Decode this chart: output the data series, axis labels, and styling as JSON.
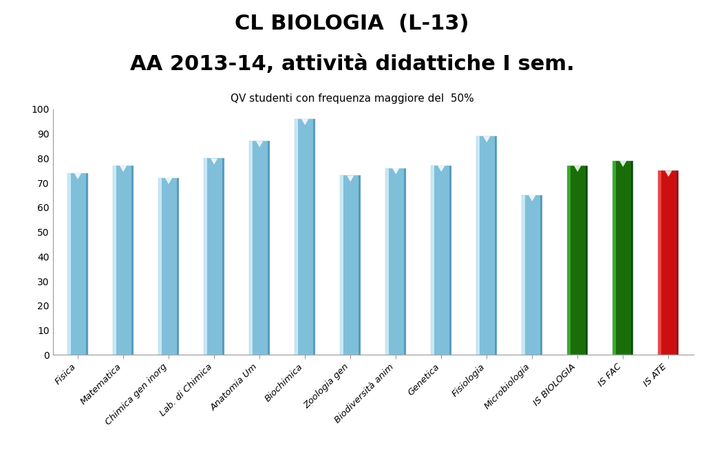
{
  "title_line1": "CL BIOLOGIA  (L-13)",
  "title_line2": "AA 2013-14, attività didattiche I sem.",
  "subtitle": "QV studenti con frequenza maggiore del  50%",
  "categories": [
    "Fisica",
    "Matematica",
    "Chimica gen inorg",
    "Lab. di Chimica",
    "Anatomia Um",
    "Biochimica",
    "Zoologia gen",
    "Biodiversità anim",
    "Genetica",
    "Fisiologia",
    "Microbiologia",
    "IS BIOLOGIA",
    "IS FAC",
    "IS ATE"
  ],
  "values": [
    74,
    77,
    72,
    80,
    87,
    96,
    73,
    76,
    77,
    89,
    65,
    77,
    79,
    75
  ],
  "bar_colors_main": [
    "#7fbfda",
    "#7fbfda",
    "#7fbfda",
    "#7fbfda",
    "#7fbfda",
    "#7fbfda",
    "#7fbfda",
    "#7fbfda",
    "#7fbfda",
    "#7fbfda",
    "#7fbfda",
    "#1a6e0a",
    "#1a6e0a",
    "#cc1010"
  ],
  "bar_colors_light": [
    "#c8e8f5",
    "#c8e8f5",
    "#c8e8f5",
    "#c8e8f5",
    "#c8e8f5",
    "#c8e8f5",
    "#c8e8f5",
    "#c8e8f5",
    "#c8e8f5",
    "#c8e8f5",
    "#c8e8f5",
    "#3aaa2a",
    "#3aaa2a",
    "#ee4444"
  ],
  "bar_colors_dark": [
    "#5599bb",
    "#5599bb",
    "#5599bb",
    "#5599bb",
    "#5599bb",
    "#5599bb",
    "#5599bb",
    "#5599bb",
    "#5599bb",
    "#5599bb",
    "#5599bb",
    "#0d4a08",
    "#0d4a08",
    "#991010"
  ],
  "ylim": [
    0,
    100
  ],
  "yticks": [
    0,
    10,
    20,
    30,
    40,
    50,
    60,
    70,
    80,
    90,
    100
  ],
  "background_color": "#ffffff",
  "title1_fontsize": 22,
  "title2_fontsize": 22,
  "subtitle_fontsize": 11,
  "bar_width": 0.45,
  "tick_label_fontsize": 9.5
}
